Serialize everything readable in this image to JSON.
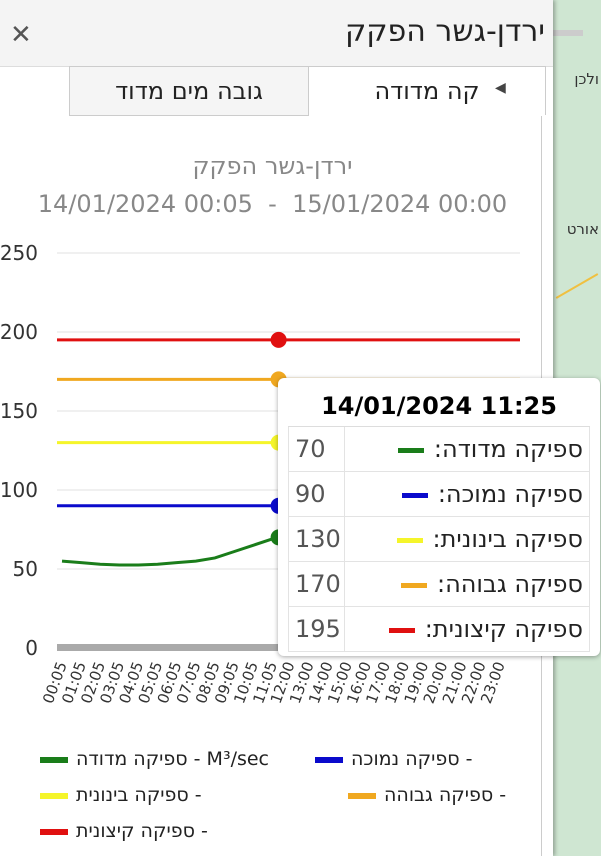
{
  "header": {
    "title": "ירדן-גשר הפקק",
    "close_icon": "close-icon"
  },
  "tabs": [
    {
      "label": "קה מדודה",
      "active": true
    },
    {
      "label": "גובה מים מדוד",
      "active": false
    }
  ],
  "map": {
    "labels": [
      "ולכן",
      "אורט"
    ]
  },
  "chart_data": {
    "type": "line",
    "title": "ירדן-גשר הפקק",
    "subtitle": "14/01/2024 00:05  -  15/01/2024 00:00",
    "ylim": [
      0,
      250
    ],
    "yticks": [
      "0",
      "50",
      "100",
      "150",
      "200",
      "250"
    ],
    "xticks": [
      "00:05",
      "01:05",
      "02:05",
      "03:05",
      "04:05",
      "05:05",
      "06:05",
      "07:05",
      "08:05",
      "09:05",
      "10:05",
      "11:05",
      "12:00",
      "13:00",
      "14:00",
      "15:00",
      "16:00",
      "17:00",
      "18:00",
      "19:00",
      "20:00",
      "21:00",
      "22:00",
      "23:00"
    ],
    "grid": true,
    "legend_position": "bottom",
    "series": [
      {
        "name": "ספיקה מדודה - M³/sec",
        "color": "#1a7d1a",
        "x": [
          "00:05",
          "01:05",
          "02:05",
          "03:05",
          "04:05",
          "05:05",
          "06:05",
          "07:05",
          "08:05",
          "09:05",
          "10:05",
          "11:05",
          "11:25"
        ],
        "values": [
          55,
          54,
          53,
          52.5,
          52.5,
          53,
          54,
          55,
          57,
          61,
          65,
          69,
          70
        ]
      },
      {
        "name": "ספיקה נמוכה -",
        "color": "#0a0acc",
        "constant": 90
      },
      {
        "name": "ספיקה בינונית -",
        "color": "#f5f52a",
        "constant": 130
      },
      {
        "name": "ספיקה גבוהה -",
        "color": "#f0a820",
        "constant": 170
      },
      {
        "name": "ספיקה קיצונית -",
        "color": "#e01010",
        "constant": 195
      }
    ],
    "tooltip": {
      "title": "14/01/2024 11:25",
      "rows": [
        {
          "label": "ספיקה מדודה:",
          "value": "70",
          "color": "#1a7d1a"
        },
        {
          "label": "ספיקה נמוכה:",
          "value": "90",
          "color": "#0a0acc"
        },
        {
          "label": "ספיקה בינונית:",
          "value": "130",
          "color": "#f5f52a"
        },
        {
          "label": "ספיקה גבוהה:",
          "value": "170",
          "color": "#f0a820"
        },
        {
          "label": "ספיקה קיצונית:",
          "value": "195",
          "color": "#e01010"
        }
      ]
    }
  }
}
